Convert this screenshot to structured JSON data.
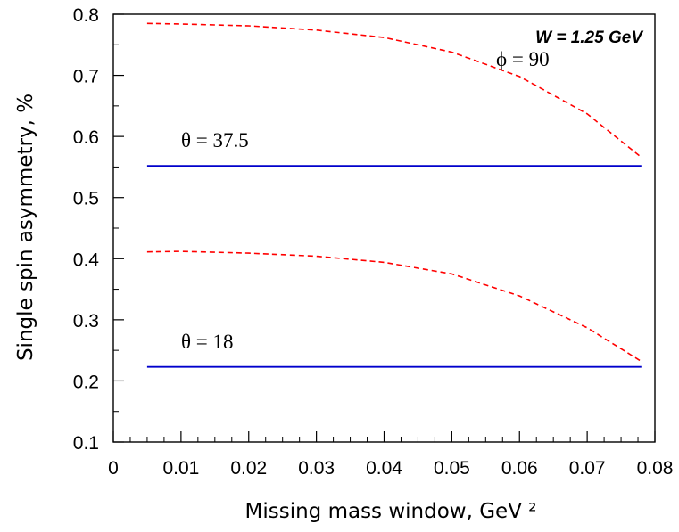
{
  "chart_data": {
    "type": "line",
    "xlabel": "Missing mass window, GeV ²",
    "ylabel": "Single spin asymmetry, %",
    "xlim": [
      0,
      0.08
    ],
    "ylim": [
      0.1,
      0.8
    ],
    "x_ticks": [
      "0",
      "0.01",
      "0.02",
      "0.03",
      "0.04",
      "0.05",
      "0.06",
      "0.07",
      "0.08"
    ],
    "y_ticks": [
      "0.1",
      "0.2",
      "0.3",
      "0.4",
      "0.5",
      "0.6",
      "0.7",
      "0.8"
    ],
    "grid": false,
    "legend": "none",
    "annotations": {
      "title": "W = 1.25 GeV",
      "phi": "ϕ = 90",
      "theta_upper": "θ = 37.5",
      "theta_lower": "θ = 18"
    },
    "series": [
      {
        "style": "dashed",
        "color": "#ff0000",
        "x": [
          0.005,
          0.01,
          0.02,
          0.03,
          0.04,
          0.05,
          0.06,
          0.07,
          0.078
        ],
        "y": [
          0.785,
          0.784,
          0.781,
          0.774,
          0.762,
          0.738,
          0.698,
          0.637,
          0.566
        ]
      },
      {
        "style": "solid",
        "color": "#0000cc",
        "x": [
          0.005,
          0.078
        ],
        "y": [
          0.552,
          0.552
        ]
      },
      {
        "style": "dashed",
        "color": "#ff0000",
        "x": [
          0.005,
          0.01,
          0.02,
          0.03,
          0.04,
          0.05,
          0.06,
          0.07,
          0.078
        ],
        "y": [
          0.411,
          0.412,
          0.409,
          0.404,
          0.394,
          0.375,
          0.339,
          0.287,
          0.232
        ]
      },
      {
        "style": "solid",
        "color": "#0000cc",
        "x": [
          0.005,
          0.078
        ],
        "y": [
          0.223,
          0.223
        ]
      }
    ]
  }
}
